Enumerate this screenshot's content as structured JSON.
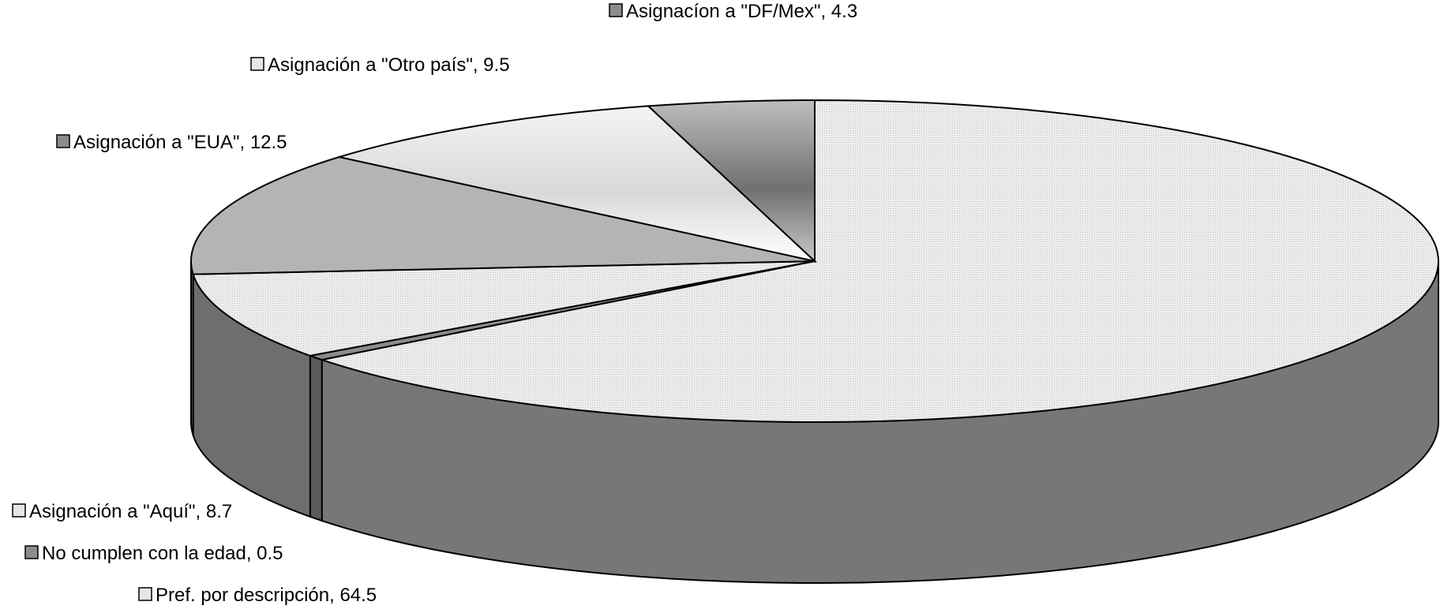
{
  "chart_data": {
    "type": "pie",
    "style": "3d",
    "slices": [
      {
        "label": "Pref. por descripción",
        "value": 64.5,
        "color": "#e6e6e6",
        "side_color": "#777777",
        "text": "Pref. por descripción, 64.5"
      },
      {
        "label": "No cumplen con la edad",
        "value": 0.5,
        "color": "#8c8c8c",
        "side_color": "#5a5a5a",
        "text": "No cumplen con la edad, 0.5"
      },
      {
        "label": "Asignación a \"Aquí\"",
        "value": 8.7,
        "color": "#e2e2e2",
        "side_color": "#6e6e6e",
        "text": "Asignación a \"Aquí\", 8.7"
      },
      {
        "label": "Asignación a \"EUA\"",
        "value": 12.5,
        "color": "#b4b4b4",
        "side_color": "#6e6e6e",
        "text": "Asignación a \"EUA\", 12.5"
      },
      {
        "label": "Asignación a \"Otro país\"",
        "value": 9.5,
        "color": "#d2d2d2",
        "side_color": "#6e6e6e",
        "text": "Asignación a \"Otro país\", 9.5"
      },
      {
        "label": "Asignacíon a \"DF/Mex\"",
        "value": 4.3,
        "color": "#9a9a9a",
        "side_color": "#6e6e6e",
        "text": "Asignacíon a \"DF/Mex\", 4.3"
      }
    ]
  }
}
